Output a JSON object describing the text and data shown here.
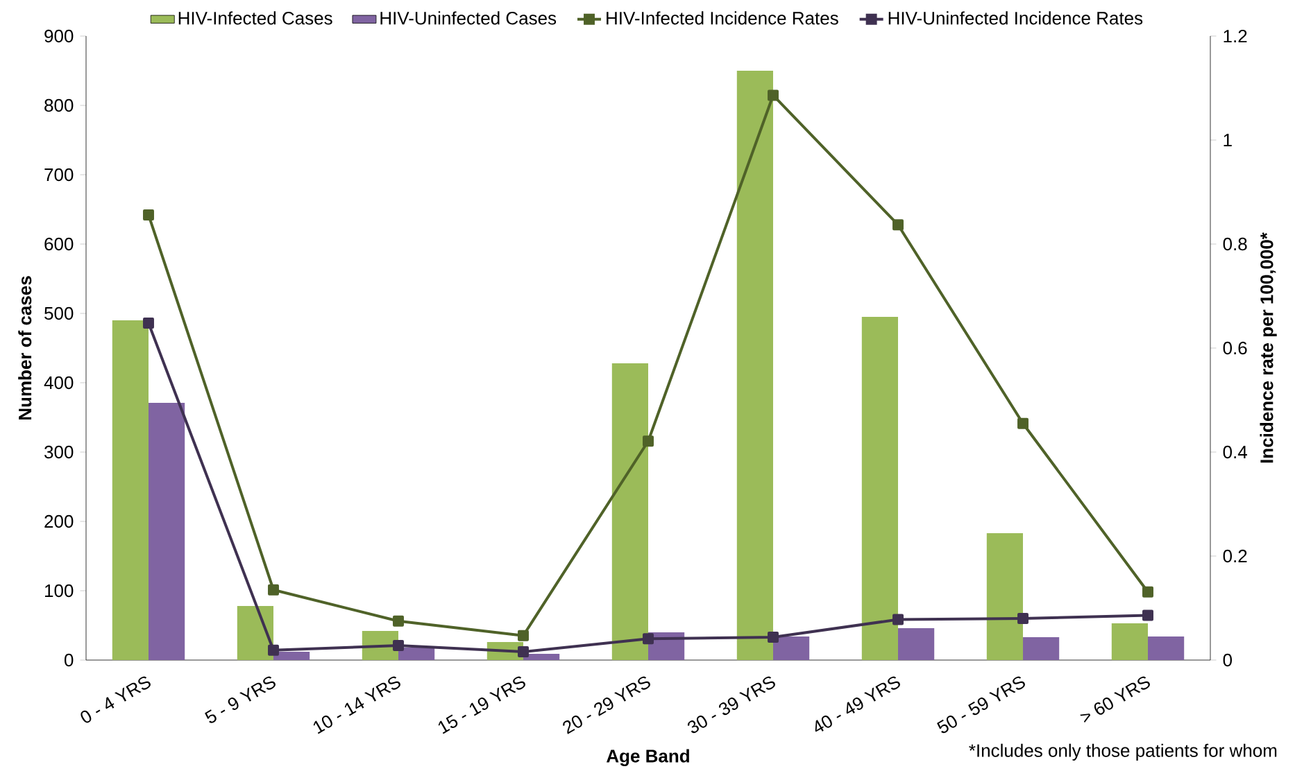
{
  "chart_data": {
    "type": "bar",
    "categories": [
      "0 - 4 YRS",
      "5 - 9 YRS",
      "10 - 14 YRS",
      "15 - 19 YRS",
      "20 - 29 YRS",
      "30 - 39 YRS",
      "40 - 49 YRS",
      "50 - 59 YRS",
      "> 60 YRS"
    ],
    "series": [
      {
        "name": "HIV-Infected Cases",
        "color": "#9bbb59",
        "values": [
          490,
          78,
          42,
          26,
          428,
          850,
          495,
          183,
          53
        ]
      },
      {
        "name": "HIV-Uninfected Cases",
        "color": "#8064a2",
        "values": [
          371,
          12,
          18,
          9,
          40,
          34,
          46,
          33,
          34
        ]
      },
      {
        "name": "HIV-Infected Incidence Rates",
        "type": "line",
        "axis": "y2",
        "color": "#4f6228",
        "values": [
          0.856,
          0.135,
          0.075,
          0.047,
          0.421,
          1.086,
          0.837,
          0.455,
          0.131
        ]
      },
      {
        "name": "HIV-Uninfected Incidence Rates",
        "type": "line",
        "axis": "y2",
        "color": "#3f3151",
        "values": [
          0.648,
          0.019,
          0.028,
          0.016,
          0.041,
          0.044,
          0.078,
          0.08,
          0.086
        ]
      }
    ],
    "xlabel": "Age Band",
    "ylabel": "Number of cases",
    "y2label": "Incidence rate per 100,000*",
    "ylim": [
      0,
      900
    ],
    "yticks": [
      0,
      100,
      200,
      300,
      400,
      500,
      600,
      700,
      800,
      900
    ],
    "y2lim": [
      0,
      1.2
    ],
    "y2ticks": [
      0,
      0.2,
      0.4,
      0.6,
      0.8,
      1,
      1.2
    ],
    "marker": "square",
    "legend": "top",
    "grid": false,
    "annotations": [
      "*Includes only those patients for whom"
    ]
  }
}
